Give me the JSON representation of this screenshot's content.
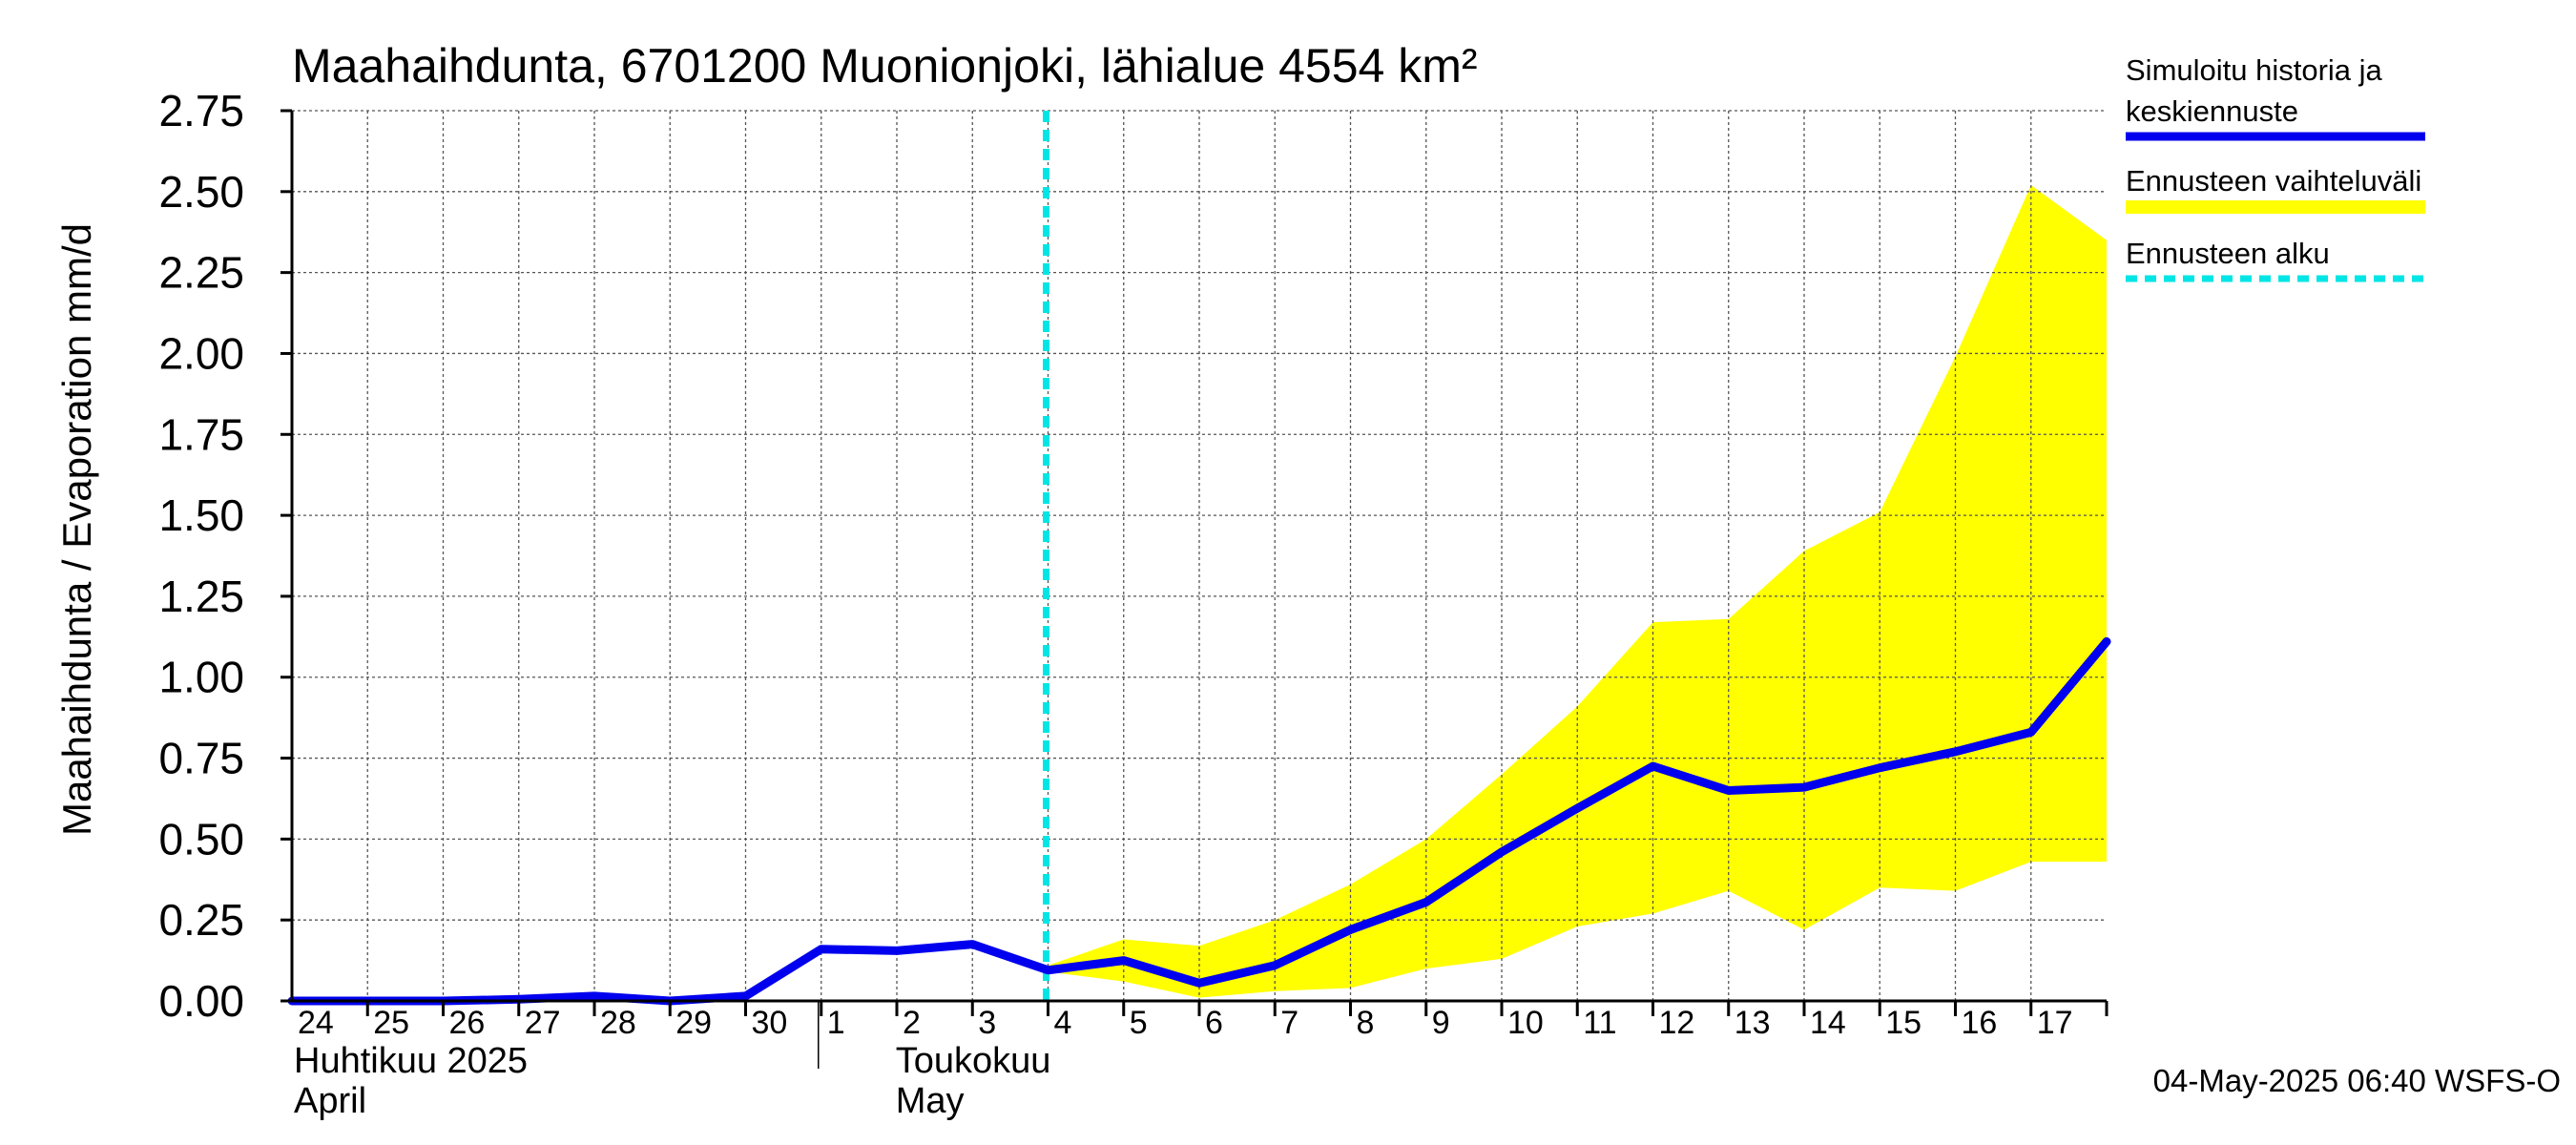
{
  "chart_data": {
    "type": "line",
    "title": "Maahaihdunta, 6701200 Muonionjoki, lähialue 4554 km²",
    "ylabel": "Maahaihdunta / Evaporation   mm/d",
    "ylim": [
      0,
      2.75
    ],
    "y_ticks": [
      "0.00",
      "0.25",
      "0.50",
      "0.75",
      "1.00",
      "1.25",
      "1.50",
      "1.75",
      "2.00",
      "2.25",
      "2.50",
      "2.75"
    ],
    "y_tick_values": [
      0,
      0.25,
      0.5,
      0.75,
      1.0,
      1.25,
      1.5,
      1.75,
      2.0,
      2.25,
      2.5,
      2.75
    ],
    "x_day_labels": [
      "24",
      "25",
      "26",
      "27",
      "28",
      "29",
      "30",
      "1",
      "2",
      "3",
      "4",
      "5",
      "6",
      "7",
      "8",
      "9",
      "10",
      "11",
      "12",
      "13",
      "14",
      "15",
      "16",
      "17"
    ],
    "x_range_days": [
      0,
      24
    ],
    "month_labels": [
      {
        "fi": "Huhtikuu  2025",
        "en": "April",
        "start_day": 0
      },
      {
        "fi": "Toukokuu",
        "en": "May",
        "start_day": 7
      }
    ],
    "month_divider_day": 7,
    "forecast_start_day": 10,
    "grid": true,
    "legend_position": "right",
    "legend": [
      {
        "label": "Simuloitu historia ja",
        "label2": "keskiennuste",
        "color": "#0000ee",
        "style": "solid"
      },
      {
        "label": "Ennusteen vaihteluväli",
        "color": "#ffff00",
        "style": "band"
      },
      {
        "label": "Ennusteen alku",
        "color": "#00e5e5",
        "style": "dashed"
      }
    ],
    "series": [
      {
        "name": "Simuloitu historia ja keskiennuste",
        "color": "#0000ee",
        "x": [
          0,
          1,
          2,
          3,
          4,
          5,
          6,
          7,
          8,
          9,
          10,
          11,
          12,
          13,
          14,
          15,
          16,
          17,
          18,
          19,
          20,
          21,
          22,
          23,
          24
        ],
        "values": [
          0.0,
          0.0,
          0.0,
          0.005,
          0.015,
          0.0,
          0.015,
          0.16,
          0.155,
          0.175,
          0.095,
          0.125,
          0.055,
          0.11,
          0.22,
          0.305,
          0.46,
          0.595,
          0.725,
          0.65,
          0.66,
          0.72,
          0.77,
          0.83,
          1.11
        ]
      }
    ],
    "band": {
      "name": "Ennusteen vaihteluväli",
      "color": "#ffff00",
      "x": [
        10,
        11,
        12,
        13,
        14,
        15,
        16,
        17,
        18,
        19,
        20,
        21,
        22,
        23,
        24
      ],
      "upper": [
        0.11,
        0.19,
        0.17,
        0.25,
        0.36,
        0.5,
        0.7,
        0.91,
        1.17,
        1.18,
        1.39,
        1.51,
        1.99,
        2.52,
        2.35
      ],
      "lower": [
        0.09,
        0.06,
        0.01,
        0.03,
        0.04,
        0.1,
        0.13,
        0.23,
        0.27,
        0.34,
        0.22,
        0.35,
        0.34,
        0.43,
        0.43
      ]
    }
  },
  "footer_text": "04-May-2025 06:40 WSFS-O"
}
